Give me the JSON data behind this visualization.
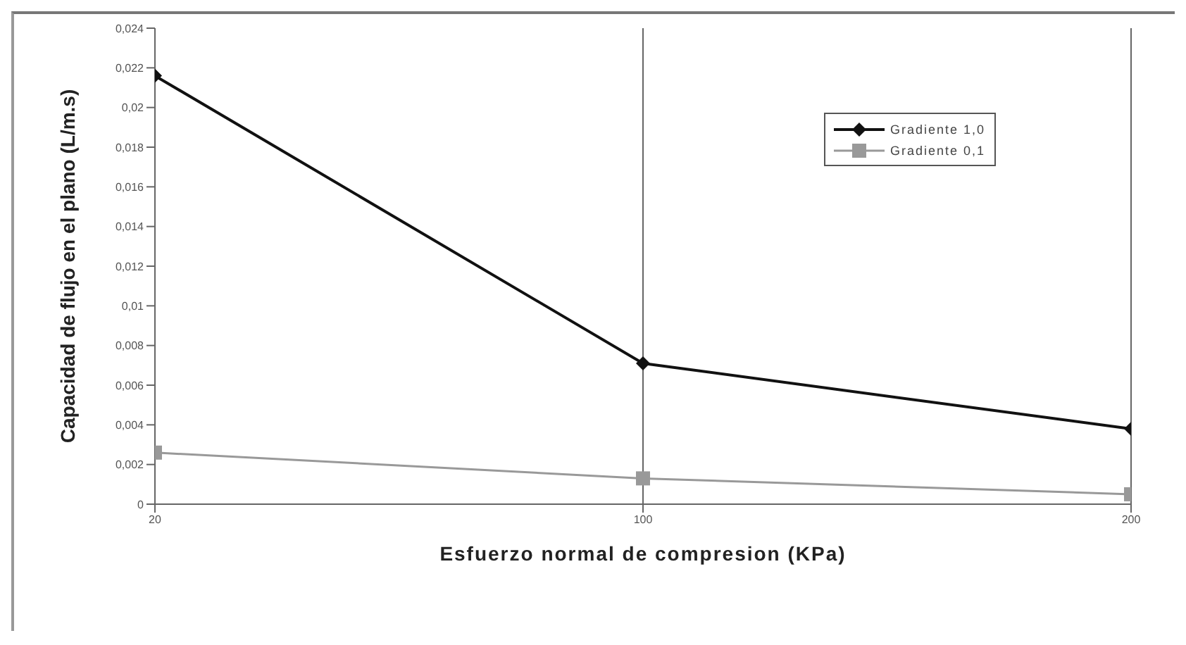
{
  "chart_data": {
    "type": "line",
    "xlabel": "Esfuerzo normal de compresion (KPa)",
    "ylabel": "Capacidad de flujo en el plano (L/m.s)",
    "categories": [
      "20",
      "100",
      "200"
    ],
    "series": [
      {
        "name": "Gradiente 1,0",
        "color": "#111111",
        "values": [
          0.0216,
          0.0071,
          0.0038
        ],
        "marker": "diamond"
      },
      {
        "name": "Gradiente 0,1",
        "color": "#999999",
        "values": [
          0.0026,
          0.0013,
          0.0005
        ],
        "marker": "square"
      }
    ],
    "ylim": [
      0,
      0.024
    ],
    "yticks": [
      0,
      {
        "value": 0.002,
        "label": "0,002"
      },
      {
        "value": 0.004,
        "label": "0,004"
      },
      {
        "value": 0.006,
        "label": "0,006"
      },
      {
        "value": 0.008,
        "label": "0,008"
      },
      {
        "value": 0.01,
        "label": "0,01"
      },
      {
        "value": 0.012,
        "label": "0,012"
      },
      {
        "value": 0.014,
        "label": "0,014"
      },
      {
        "value": 0.016,
        "label": "0,016"
      },
      {
        "value": 0.018,
        "label": "0,018"
      },
      {
        "value": 0.02,
        "label": "0,02"
      },
      {
        "value": 0.022,
        "label": "0,022"
      },
      {
        "value": 0.024,
        "label": "0,024"
      }
    ],
    "grid": "x",
    "legend": "top right",
    "line_style": "solid"
  }
}
